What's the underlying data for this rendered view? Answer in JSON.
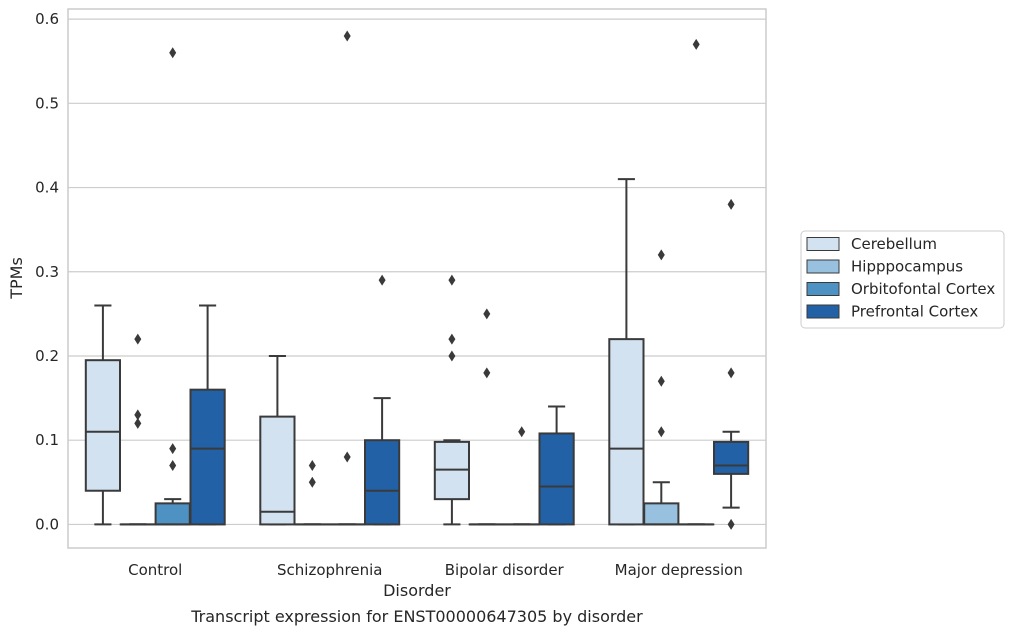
{
  "caption": "Transcript expression for ENST00000647305 by disorder",
  "colors": {
    "Cerebellum": "#d2e2f1",
    "Hipppocampus": "#97c1de",
    "Orbitofontal Cortex": "#4e91c3",
    "Prefrontal Cortex": "#2361a7",
    "edge": "#3a3a3a",
    "grid": "#cccccc"
  },
  "chart_data": {
    "type": "box",
    "xlabel": "Disorder",
    "ylabel": "TPMs",
    "ylim": [
      -0.028,
      0.612
    ],
    "yticks": [
      "0.0",
      "0.1",
      "0.2",
      "0.3",
      "0.4",
      "0.5",
      "0.6"
    ],
    "categories": [
      "Control",
      "Schizophrenia",
      "Bipolar disorder",
      "Major depression"
    ],
    "legend_position": "center-right",
    "grid": "horizontal",
    "series": [
      {
        "name": "Cerebellum",
        "boxes": [
          {
            "q1": 0.04,
            "median": 0.11,
            "q3": 0.195,
            "whislo": 0.0,
            "whishi": 0.26,
            "fliers": []
          },
          {
            "q1": 0.0,
            "median": 0.015,
            "q3": 0.128,
            "whislo": 0.0,
            "whishi": 0.2,
            "fliers": []
          },
          {
            "q1": 0.03,
            "median": 0.065,
            "q3": 0.098,
            "whislo": 0.0,
            "whishi": 0.1,
            "fliers": [
              0.2,
              0.22,
              0.29
            ]
          },
          {
            "q1": 0.0,
            "median": 0.09,
            "q3": 0.22,
            "whislo": 0.0,
            "whishi": 0.41,
            "fliers": []
          }
        ]
      },
      {
        "name": "Hipppocampus",
        "boxes": [
          {
            "q1": 0.0,
            "median": 0.0,
            "q3": 0.0,
            "whislo": 0.0,
            "whishi": 0.0,
            "fliers": [
              0.12,
              0.13,
              0.22
            ]
          },
          {
            "q1": 0.0,
            "median": 0.0,
            "q3": 0.0,
            "whislo": 0.0,
            "whishi": 0.0,
            "fliers": [
              0.05,
              0.07
            ]
          },
          {
            "q1": 0.0,
            "median": 0.0,
            "q3": 0.0,
            "whislo": 0.0,
            "whishi": 0.0,
            "fliers": [
              0.18,
              0.25
            ]
          },
          {
            "q1": 0.0,
            "median": 0.0,
            "q3": 0.025,
            "whislo": 0.0,
            "whishi": 0.05,
            "fliers": [
              0.11,
              0.17,
              0.32
            ]
          }
        ]
      },
      {
        "name": "Orbitofontal Cortex",
        "boxes": [
          {
            "q1": 0.0,
            "median": 0.0,
            "q3": 0.025,
            "whislo": 0.0,
            "whishi": 0.03,
            "fliers": [
              0.07,
              0.09,
              0.56
            ]
          },
          {
            "q1": 0.0,
            "median": 0.0,
            "q3": 0.0,
            "whislo": 0.0,
            "whishi": 0.0,
            "fliers": [
              0.08,
              0.58
            ]
          },
          {
            "q1": 0.0,
            "median": 0.0,
            "q3": 0.0,
            "whislo": 0.0,
            "whishi": 0.0,
            "fliers": [
              0.11
            ]
          },
          {
            "q1": 0.0,
            "median": 0.0,
            "q3": 0.0,
            "whislo": 0.0,
            "whishi": 0.0,
            "fliers": [
              0.57
            ]
          }
        ]
      },
      {
        "name": "Prefrontal Cortex",
        "boxes": [
          {
            "q1": 0.0,
            "median": 0.09,
            "q3": 0.16,
            "whislo": 0.0,
            "whishi": 0.26,
            "fliers": []
          },
          {
            "q1": 0.0,
            "median": 0.04,
            "q3": 0.1,
            "whislo": 0.0,
            "whishi": 0.15,
            "fliers": [
              0.29
            ]
          },
          {
            "q1": 0.0,
            "median": 0.045,
            "q3": 0.108,
            "whislo": 0.0,
            "whishi": 0.14,
            "fliers": []
          },
          {
            "q1": 0.06,
            "median": 0.07,
            "q3": 0.098,
            "whislo": 0.02,
            "whishi": 0.11,
            "fliers": [
              0.0,
              0.18,
              0.38
            ]
          }
        ]
      }
    ]
  }
}
